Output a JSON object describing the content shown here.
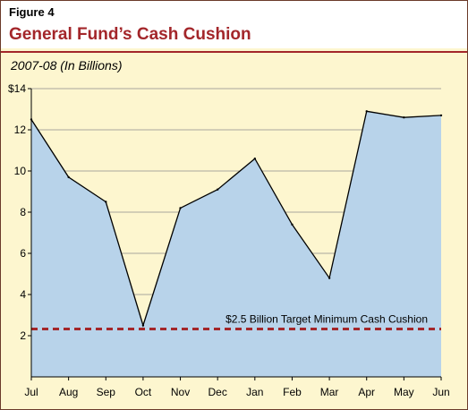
{
  "figure": {
    "label": "Figure 4",
    "title": "General Fund’s Cash Cushion",
    "subtitle": "2007-08 (In Billions)"
  },
  "chart_data": {
    "type": "area",
    "categories": [
      "Jul",
      "Aug",
      "Sep",
      "Oct",
      "Nov",
      "Dec",
      "Jan",
      "Feb",
      "Mar",
      "Apr",
      "May",
      "Jun"
    ],
    "values": [
      12.5,
      9.7,
      8.5,
      2.5,
      8.2,
      9.1,
      10.6,
      7.4,
      4.8,
      12.9,
      12.6,
      12.7
    ],
    "ylim": [
      0,
      14
    ],
    "yticks": [
      {
        "value": 2,
        "label": "2"
      },
      {
        "value": 4,
        "label": "4"
      },
      {
        "value": 6,
        "label": "6"
      },
      {
        "value": 8,
        "label": "8"
      },
      {
        "value": 10,
        "label": "10"
      },
      {
        "value": 12,
        "label": "12"
      },
      {
        "value": 14,
        "label": "$14"
      }
    ],
    "grid": true,
    "threshold": {
      "value": 2.5,
      "label": "$2.5 Billion Target Minimum Cash Cushion"
    },
    "colors": {
      "area_fill": "#b8d3ea",
      "plot_background": "#fdf6cf",
      "grid": "#8c8c8c",
      "threshold": "#a3262a",
      "title": "#a3262a"
    }
  }
}
